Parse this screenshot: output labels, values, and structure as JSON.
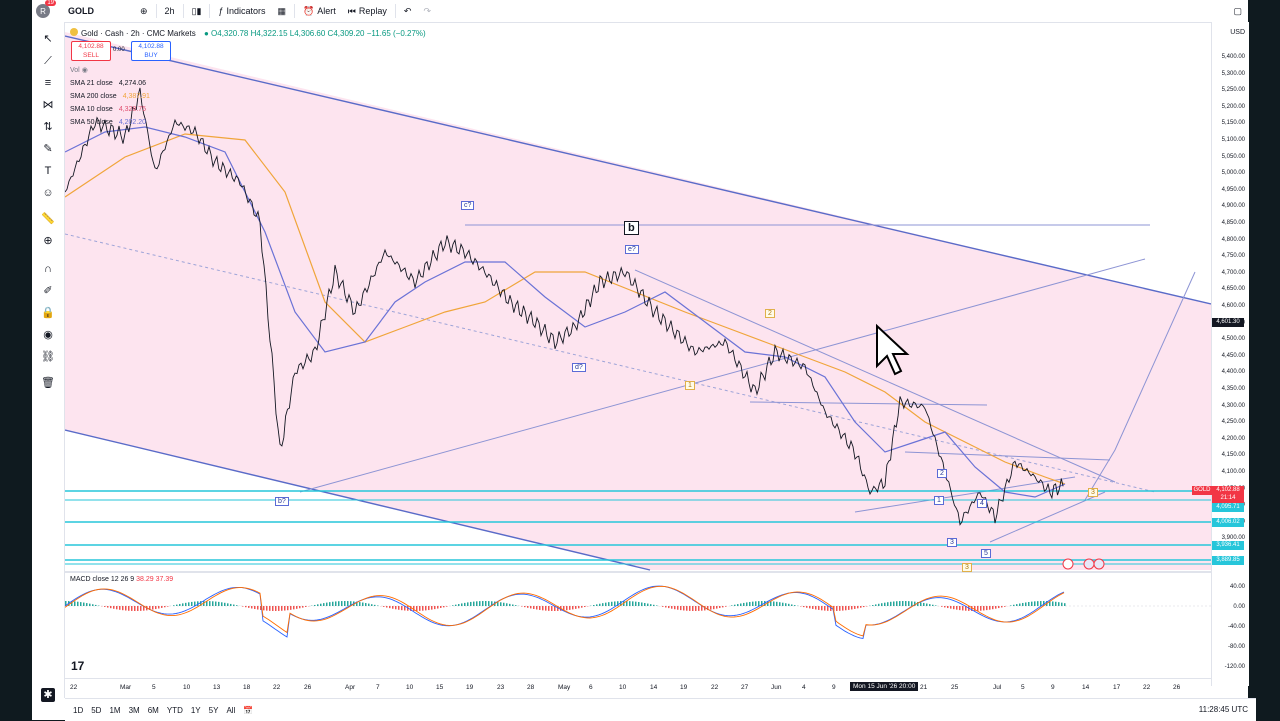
{
  "toolbar": {
    "notifications": "19",
    "symbol": "GOLD",
    "interval": "2h",
    "indicators": "Indicators",
    "alert": "Alert",
    "replay": "Replay"
  },
  "legend": {
    "title": "Gold · Cash · 2h · CMC Markets",
    "ohlc": "O4,320.78 H4,322.15 L4,306.60 C4,309.20 −11.65 (−0.27%)",
    "sell_price": "4,102.88",
    "sell_label": "SELL",
    "spread": "0.00",
    "buy_price": "4,102.88",
    "buy_label": "BUY",
    "vol": "Vol",
    "indicators": [
      {
        "name": "SMA 21 close",
        "value": "4,274.06",
        "color": "#131722"
      },
      {
        "name": "SMA 200 close",
        "value": "4,387.91",
        "color": "#f0a53a"
      },
      {
        "name": "SMA 10 close",
        "value": "4,328.75",
        "color": "#e05070"
      },
      {
        "name": "SMA 50 close",
        "value": "4,202.20",
        "color": "#6a72d6"
      }
    ],
    "macd": "MACD close 12 26 9",
    "macd_vals": "38.29  37.39"
  },
  "y_axis": {
    "currency": "USD",
    "labels": [
      "5,400.00",
      "5,300.00",
      "5,250.00",
      "5,200.00",
      "5,150.00",
      "5,100.00",
      "5,050.00",
      "5,000.00",
      "4,950.00",
      "4,900.00",
      "4,850.00",
      "4,800.00",
      "4,750.00",
      "4,700.00",
      "4,650.00",
      "4,600.00",
      "4,550.00",
      "4,500.00",
      "4,450.00",
      "4,400.00",
      "4,350.00",
      "4,300.00",
      "4,250.00",
      "4,200.00",
      "4,150.00",
      "4,100.00",
      "4,050.00",
      "4,000.00",
      "3,950.00",
      "3,900.00"
    ],
    "tags": [
      {
        "text": "4,601.30",
        "color": "#131722"
      },
      {
        "text": "4,102.88",
        "color": "#f23645"
      },
      {
        "text": "21:14",
        "color": "#f23645"
      },
      {
        "text": "4,095.71",
        "color": "#26c6da"
      },
      {
        "text": "4,006.02",
        "color": "#26c6da"
      },
      {
        "text": "3,936.41",
        "color": "#26c6da"
      },
      {
        "text": "3,889.85",
        "color": "#26c6da"
      }
    ],
    "gold_tag": "GOLD",
    "macd_labels": [
      "40.00",
      "0.00",
      "-40.00",
      "-80.00",
      "-120.00"
    ]
  },
  "x_axis": {
    "labels": [
      "22",
      "Mar",
      "5",
      "10",
      "13",
      "18",
      "22",
      "26",
      "Apr",
      "7",
      "10",
      "15",
      "19",
      "23",
      "28",
      "May",
      "6",
      "10",
      "14",
      "19",
      "22",
      "27",
      "Jun",
      "4",
      "9",
      "Mon 15 Jun '26  20:00",
      "21",
      "25",
      "Jul",
      "5",
      "9",
      "14",
      "17",
      "22",
      "26"
    ]
  },
  "wave_labels": [
    "c?",
    "b",
    "e?",
    "2",
    "d?",
    "1",
    "b?",
    "2",
    "1",
    "4",
    "3",
    "5",
    "3",
    "3"
  ],
  "timeframes": [
    "1D",
    "5D",
    "1M",
    "3M",
    "6M",
    "YTD",
    "1Y",
    "5Y",
    "All"
  ],
  "clock": "11:28:45 UTC",
  "colors": {
    "up": "#089981",
    "down": "#f23645",
    "accent": "#2962ff",
    "channel_fill": "#fde4ef"
  }
}
